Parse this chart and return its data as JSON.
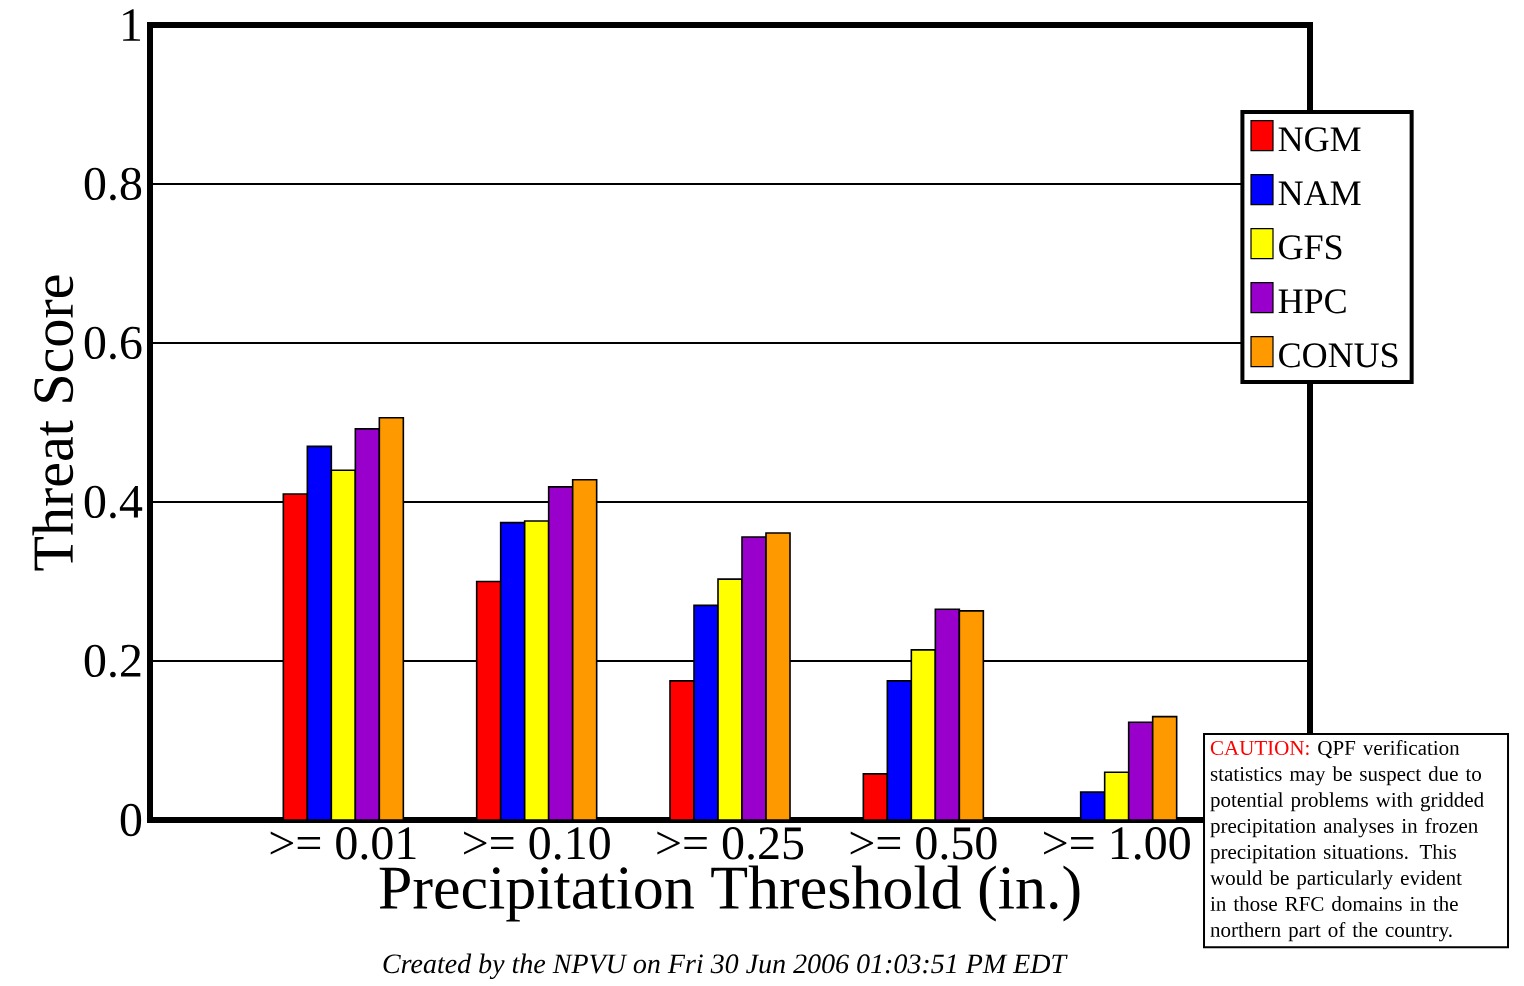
{
  "chart_data": {
    "type": "bar",
    "xlabel": "Precipitation Threshold (in.)",
    "ylabel": "Threat Score",
    "categories": [
      ">= 0.01",
      ">= 0.10",
      ">= 0.25",
      ">= 0.50",
      ">= 1.00"
    ],
    "series": [
      {
        "name": "NGM",
        "color": "#ff0000",
        "values": [
          0.41,
          0.3,
          0.175,
          0.058,
          null
        ]
      },
      {
        "name": "NAM",
        "color": "#0000ff",
        "values": [
          0.47,
          0.374,
          0.27,
          0.175,
          0.035
        ]
      },
      {
        "name": "GFS",
        "color": "#ffff00",
        "values": [
          0.44,
          0.376,
          0.303,
          0.214,
          0.06
        ]
      },
      {
        "name": "HPC",
        "color": "#9900cc",
        "values": [
          0.492,
          0.419,
          0.356,
          0.265,
          0.123
        ]
      },
      {
        "name": "CONUS",
        "color": "#ff9900",
        "values": [
          0.506,
          0.428,
          0.361,
          0.263,
          0.13
        ]
      }
    ],
    "ylim": [
      0,
      1
    ],
    "yticks": [
      0,
      0.2,
      0.4,
      0.6,
      0.8,
      1
    ],
    "grid": "y",
    "legend": "top right",
    "annotations": [
      "CAUTION:",
      "QPF verification statistics may be suspect due to potential problems with gridded precipitation analyses in frozen precipitation situations. This would be particularly evident in those RFC domains in the northern part of the country.",
      "Created by  the NPVU on Fri 30 Jun 2006 01:03:51 PM EDT"
    ]
  }
}
